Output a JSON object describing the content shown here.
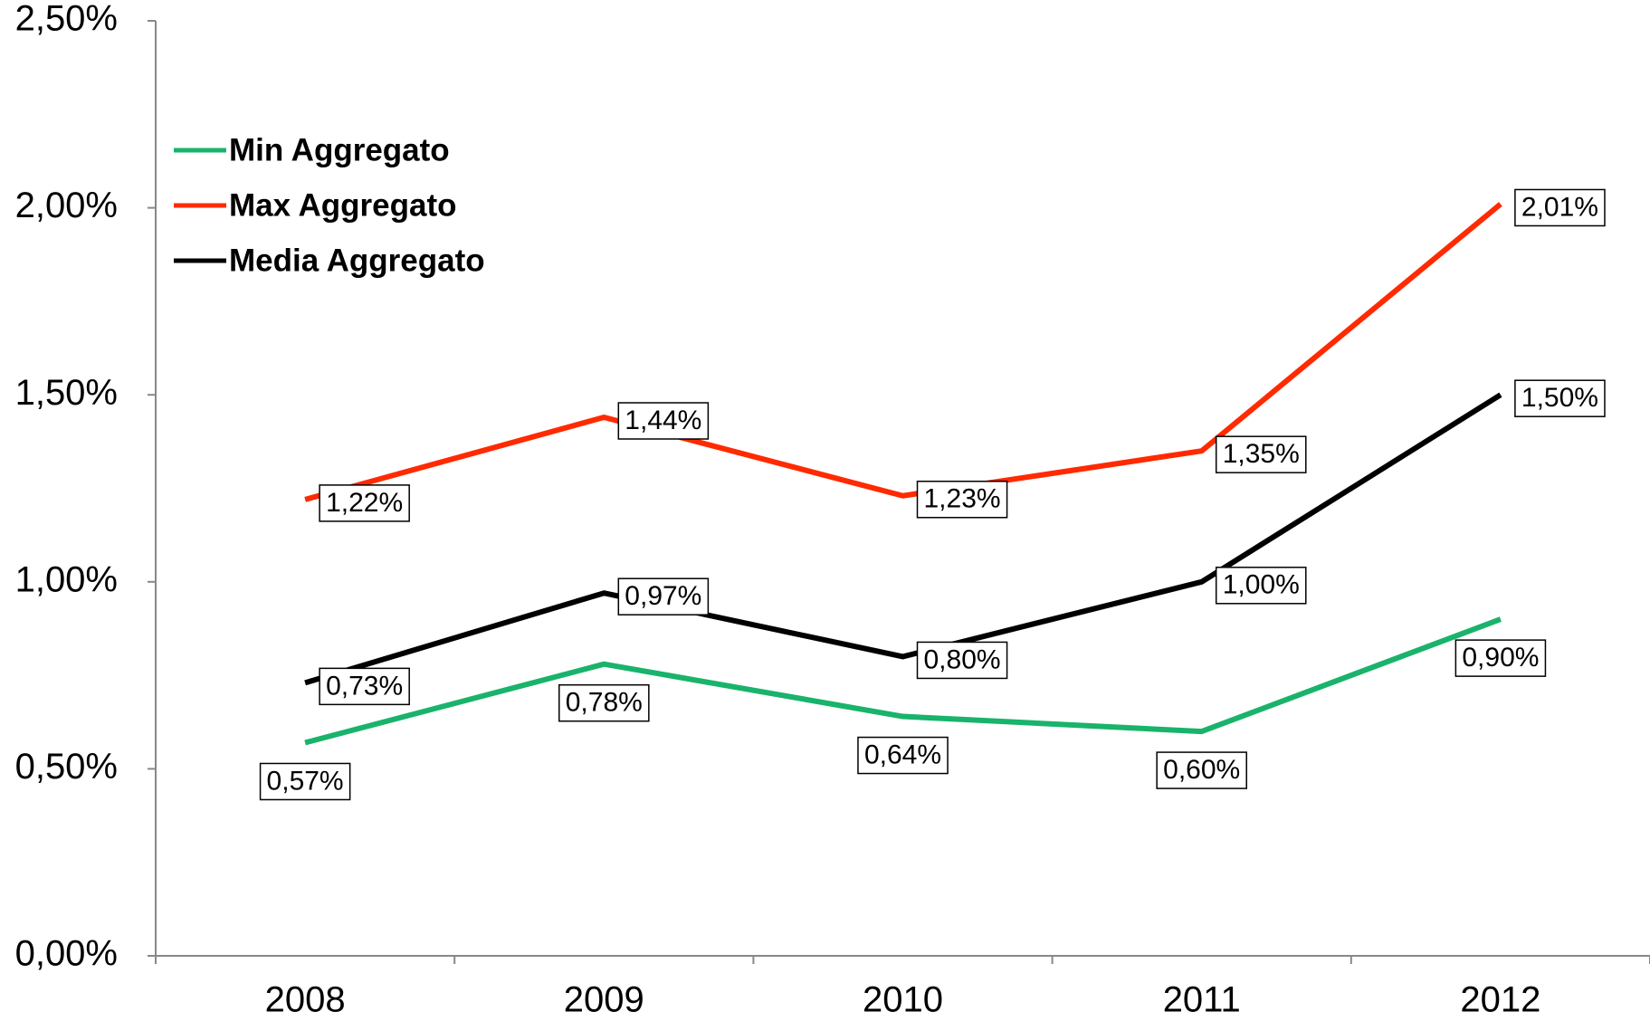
{
  "chart_data": {
    "type": "line",
    "categories": [
      "2008",
      "2009",
      "2010",
      "2011",
      "2012"
    ],
    "series": [
      {
        "name": "Min Aggregato",
        "color": "#19b36b",
        "values": [
          0.57,
          0.78,
          0.64,
          0.6,
          0.9
        ],
        "value_labels": [
          "0,57%",
          "0,78%",
          "0,64%",
          "0,60%",
          "0,90%"
        ]
      },
      {
        "name": "Max Aggregato",
        "color": "#ff2a00",
        "values": [
          1.22,
          1.44,
          1.23,
          1.35,
          2.01
        ],
        "value_labels": [
          "1,22%",
          "1,44%",
          "1,23%",
          "1,35%",
          "2,01%"
        ]
      },
      {
        "name": "Media Aggregato",
        "color": "#000000",
        "values": [
          0.73,
          0.97,
          0.8,
          1.0,
          1.5
        ],
        "value_labels": [
          "0,73%",
          "0,97%",
          "0,80%",
          "1,00%",
          "1,50%"
        ]
      }
    ],
    "ylim": [
      0,
      2.5
    ],
    "yticks": [
      {
        "value": 0,
        "label": "0,00%"
      },
      {
        "value": 0.5,
        "label": "0,50%"
      },
      {
        "value": 1.0,
        "label": "1,00%"
      },
      {
        "value": 1.5,
        "label": "1,50%"
      },
      {
        "value": 2.0,
        "label": "2,00%"
      },
      {
        "value": 2.5,
        "label": "2,50%"
      }
    ],
    "legend": "upper left"
  }
}
